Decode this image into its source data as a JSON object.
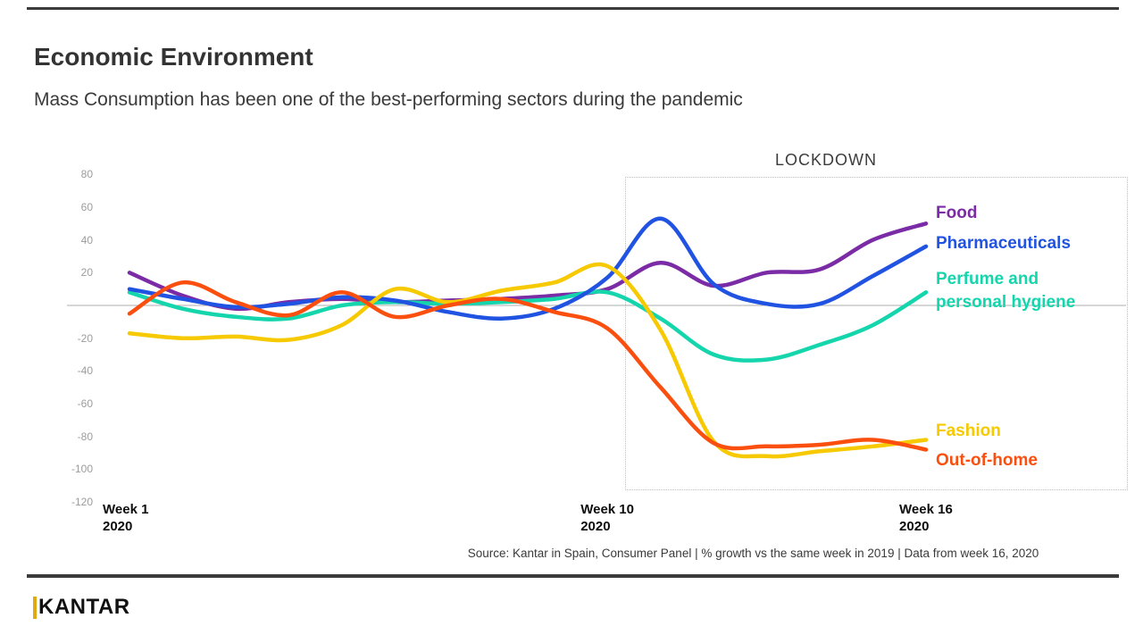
{
  "slide": {
    "title": "Economic Environment",
    "subtitle": "Mass Consumption has been one of the best-performing sectors during the pandemic",
    "source": "Source: Kantar in Spain, Consumer Panel | % growth vs the same week in 2019 | Data from week 16, 2020",
    "brand": {
      "logo_text": "KANTAR",
      "accent_color": "#e0a90f"
    }
  },
  "chart_data": {
    "type": "line",
    "title": "",
    "annotation": {
      "label": "LOCKDOWN",
      "span_weeks": [
        10.3,
        16
      ],
      "style": "dotted-box"
    },
    "x_weeks": [
      1,
      2,
      3,
      4,
      5,
      6,
      7,
      8,
      9,
      10,
      11,
      12,
      13,
      14,
      15,
      16
    ],
    "x_label_weeks": [
      {
        "week": 1,
        "line1": "Week 1",
        "line2": "2020"
      },
      {
        "week": 10,
        "line1": "Week 10",
        "line2": "2020"
      },
      {
        "week": 16,
        "line1": "Week 16",
        "line2": "2020"
      }
    ],
    "y_ticks": [
      80,
      60,
      40,
      20,
      -20,
      -40,
      -60,
      -80,
      -100,
      -120
    ],
    "ylim": [
      -125,
      90
    ],
    "grid": "zero-axis-only",
    "legend_position": "right-inline",
    "series": [
      {
        "name": "Food",
        "label_lines": [
          "Food"
        ],
        "color": "#7a2ba5",
        "values": [
          20,
          6,
          -2,
          2,
          4,
          2,
          3,
          4,
          6,
          10,
          26,
          12,
          20,
          22,
          40,
          50
        ]
      },
      {
        "name": "Pharmaceuticals",
        "label_lines": [
          "Pharmaceuticals"
        ],
        "color": "#2153e2",
        "values": [
          10,
          4,
          -1,
          1,
          5,
          3,
          -4,
          -8,
          -2,
          17,
          53,
          13,
          1,
          1,
          18,
          36
        ]
      },
      {
        "name": "Perfume and personal hygiene",
        "label_lines": [
          "Perfume and",
          "personal hygiene"
        ],
        "color": "#15d5ad",
        "values": [
          8,
          -2,
          -7,
          -8,
          0,
          2,
          1,
          2,
          4,
          8,
          -8,
          -30,
          -33,
          -24,
          -12,
          8
        ]
      },
      {
        "name": "Fashion",
        "label_lines": [
          "Fashion"
        ],
        "color": "#f6c900",
        "values": [
          -17,
          -20,
          -19,
          -21,
          -12,
          10,
          2,
          9,
          14,
          24,
          -15,
          -83,
          -92,
          -89,
          -86,
          -82
        ]
      },
      {
        "name": "Out-of-home",
        "label_lines": [
          "Out-of-home"
        ],
        "color": "#fb4f0f",
        "values": [
          -5,
          14,
          2,
          -6,
          8,
          -7,
          0,
          4,
          -4,
          -14,
          -50,
          -84,
          -86,
          -85,
          -82,
          -88
        ]
      }
    ],
    "axis_color": "#adadad"
  }
}
